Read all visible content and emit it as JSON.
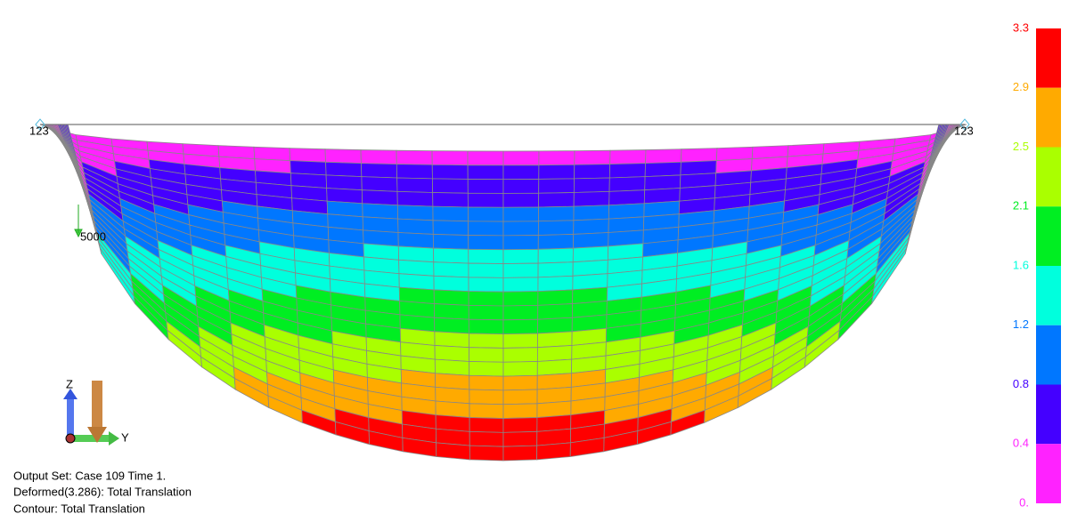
{
  "viewport": {
    "node_labels": [
      "123",
      "123"
    ],
    "load_label": "5000",
    "triad": {
      "z": "Z",
      "y": "Y"
    }
  },
  "info": [
    "Output Set: Case 109 Time 1.",
    "Deformed(3.286): Total Translation",
    "Contour: Total Translation"
  ],
  "legend": {
    "labels": [
      "3.3",
      "2.9",
      "2.5",
      "2.1",
      "1.6",
      "1.2",
      "0.8",
      "0.4",
      "0."
    ],
    "colors": [
      "#ff0000",
      "#ffaa00",
      "#aaff00",
      "#00ee22",
      "#00ffdd",
      "#0077ff",
      "#4400ff",
      "#ff22ff"
    ]
  }
}
